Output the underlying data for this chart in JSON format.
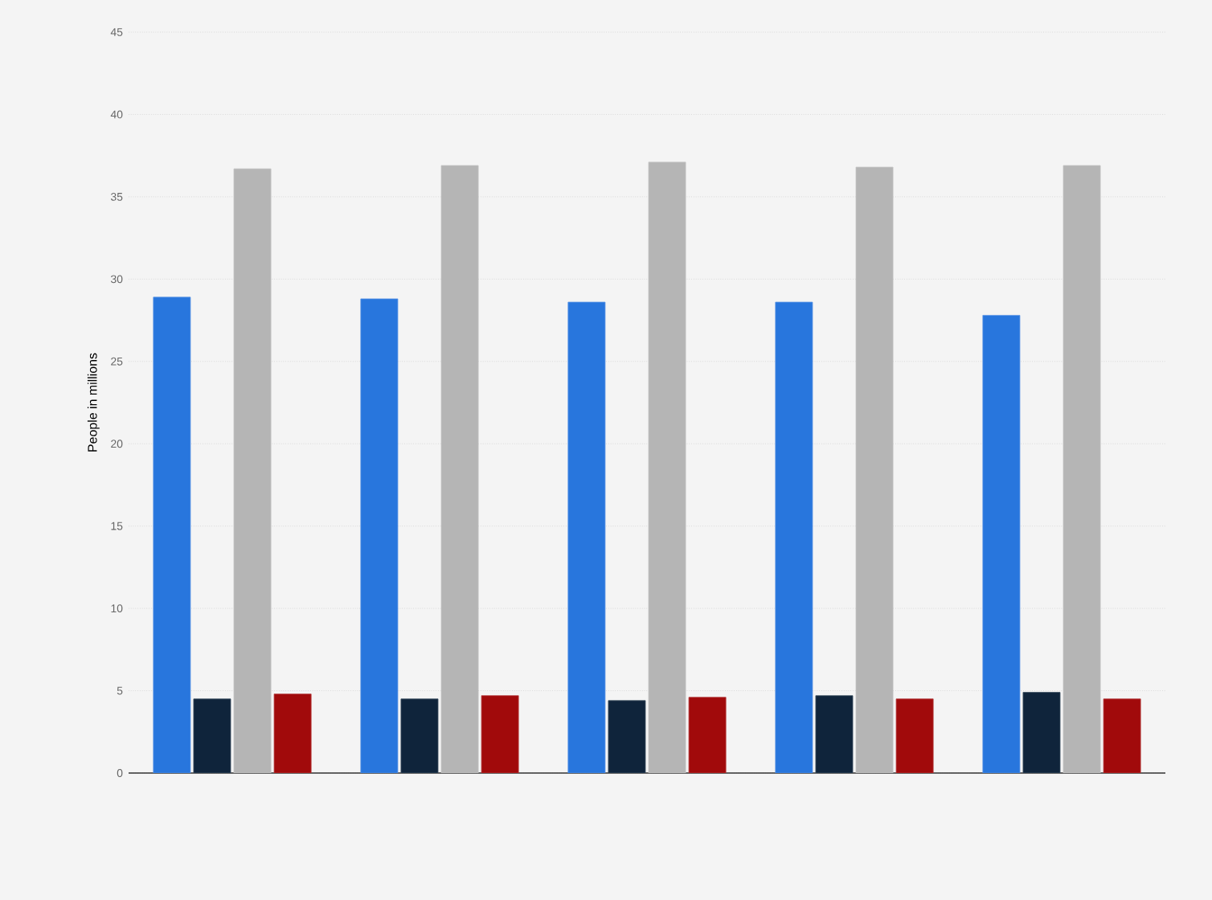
{
  "chart_data": {
    "type": "bar",
    "ylabel": "People in millions",
    "categories": [
      null,
      null,
      null,
      null,
      null
    ],
    "series": [
      {
        "color": "#2876dd",
        "values": [
          28.9,
          28.8,
          28.6,
          28.6,
          27.8
        ]
      },
      {
        "color": "#0f243b",
        "values": [
          4.5,
          4.5,
          4.4,
          4.7,
          4.9
        ]
      },
      {
        "color": "#b5b5b5",
        "values": [
          36.7,
          36.9,
          37.1,
          36.8,
          36.9
        ]
      },
      {
        "color": "#a10a0b",
        "values": [
          4.8,
          4.7,
          4.6,
          4.5,
          4.5
        ]
      }
    ],
    "ylim": [
      0,
      45
    ],
    "yticks": [
      0,
      5,
      10,
      15,
      20,
      25,
      30,
      35,
      40,
      45
    ],
    "grid": "y"
  }
}
